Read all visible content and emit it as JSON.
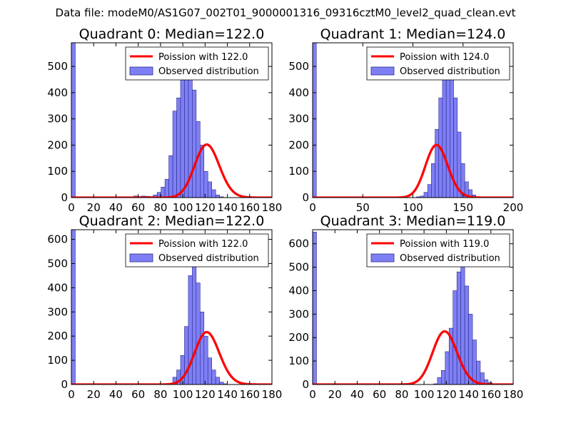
{
  "figure_title": "Data file: modeM0/AS1G07_002T01_9000001316_09316cztM0_level2_quad_clean.evt",
  "colors": {
    "bar_fill": "#7f7ff5",
    "bar_edge": "#2b2b8c",
    "curve": "#ff0000",
    "curve_peak": "#f08080"
  },
  "chart_data": [
    {
      "type": "bar",
      "title": "Quadrant 0: Median=122.0",
      "legend": [
        "Poission with 122.0",
        "Observed distribution"
      ],
      "xlim": [
        0,
        180
      ],
      "ylim": [
        0,
        590
      ],
      "xticks": [
        0,
        20,
        40,
        60,
        80,
        100,
        120,
        140,
        160,
        180
      ],
      "yticks": [
        100,
        200,
        300,
        400,
        500
      ],
      "bin_edges_start": 0,
      "bin_width": 3.5,
      "values": [
        590,
        0,
        0,
        0,
        0,
        0,
        0,
        0,
        0,
        0,
        0,
        0,
        0,
        0,
        1,
        3,
        6,
        4,
        6,
        5,
        4,
        10,
        20,
        40,
        70,
        160,
        330,
        380,
        470,
        560,
        470,
        410,
        290,
        200,
        100,
        60,
        30,
        10,
        3,
        0,
        0,
        0,
        0,
        0,
        0,
        0,
        0,
        0,
        0,
        0,
        0
      ],
      "poisson_mean": 122.0,
      "poisson_scale": 5600
    },
    {
      "type": "bar",
      "title": "Quadrant 1: Median=124.0",
      "legend": [
        "Poission with 124.0",
        "Observed distribution"
      ],
      "xlim": [
        0,
        200
      ],
      "ylim": [
        0,
        590
      ],
      "xticks": [
        0,
        50,
        100,
        150,
        200
      ],
      "yticks": [
        100,
        200,
        300,
        400,
        500
      ],
      "bin_edges_start": 0,
      "bin_width": 3.7,
      "values": [
        590,
        0,
        0,
        0,
        0,
        0,
        0,
        0,
        0,
        0,
        0,
        0,
        0,
        0,
        0,
        0,
        0,
        0,
        0,
        0,
        0,
        0,
        0,
        0,
        0,
        0,
        0,
        0,
        3,
        6,
        20,
        50,
        130,
        260,
        380,
        460,
        560,
        460,
        380,
        250,
        130,
        60,
        30,
        10,
        3,
        0,
        0,
        0,
        0,
        0,
        0,
        0,
        0,
        0
      ],
      "poisson_mean": 124.0,
      "poisson_scale": 5600
    },
    {
      "type": "bar",
      "title": "Quadrant 2: Median=122.0",
      "legend": [
        "Poission with 122.0",
        "Observed distribution"
      ],
      "xlim": [
        0,
        180
      ],
      "ylim": [
        0,
        640
      ],
      "xticks": [
        0,
        20,
        40,
        60,
        80,
        100,
        120,
        140,
        160,
        180
      ],
      "yticks": [
        100,
        200,
        300,
        400,
        500,
        600
      ],
      "bin_edges_start": 0,
      "bin_width": 3.5,
      "values": [
        640,
        0,
        0,
        0,
        0,
        0,
        0,
        0,
        0,
        0,
        0,
        0,
        0,
        0,
        0,
        0,
        0,
        0,
        0,
        0,
        0,
        0,
        0,
        0,
        0,
        3,
        30,
        60,
        120,
        240,
        450,
        560,
        420,
        300,
        200,
        110,
        60,
        30,
        10,
        3,
        0,
        0,
        0,
        0,
        0,
        0,
        0,
        0,
        0,
        0,
        0,
        0
      ],
      "poisson_mean": 122.0,
      "poisson_scale": 6000
    },
    {
      "type": "bar",
      "title": "Quadrant 3: Median=119.0",
      "legend": [
        "Poission with 119.0",
        "Observed distribution"
      ],
      "xlim": [
        0,
        180
      ],
      "ylim": [
        0,
        660
      ],
      "xticks": [
        0,
        20,
        40,
        60,
        80,
        100,
        120,
        140,
        160,
        180
      ],
      "yticks": [
        100,
        200,
        300,
        400,
        500,
        600
      ],
      "bin_edges_start": 0,
      "bin_width": 3.5,
      "values": [
        650,
        0,
        0,
        0,
        0,
        0,
        0,
        0,
        0,
        0,
        0,
        0,
        0,
        0,
        0,
        0,
        0,
        0,
        0,
        0,
        0,
        0,
        0,
        0,
        0,
        0,
        0,
        0,
        0,
        0,
        0,
        3,
        30,
        60,
        140,
        240,
        400,
        480,
        520,
        420,
        300,
        190,
        100,
        50,
        20,
        8,
        3,
        0,
        0,
        0,
        0,
        0
      ],
      "poisson_mean": 119.0,
      "poisson_scale": 6200
    }
  ]
}
